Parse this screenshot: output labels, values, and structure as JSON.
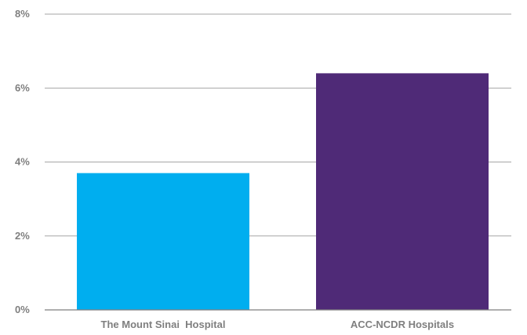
{
  "chart_data": {
    "type": "bar",
    "categories": [
      "The Mount Sinai  Hospital",
      "ACC-NCDR Hospitals"
    ],
    "values": [
      3.7,
      6.4
    ],
    "colors": [
      "#00aeef",
      "#4f2a77"
    ],
    "ylim": [
      0,
      8
    ],
    "yticks": [
      0,
      2,
      4,
      6,
      8
    ],
    "ytick_labels": [
      "0%",
      "2%",
      "4%",
      "6%",
      "8%"
    ],
    "grid": true,
    "title": "",
    "xlabel": "",
    "ylabel": ""
  }
}
